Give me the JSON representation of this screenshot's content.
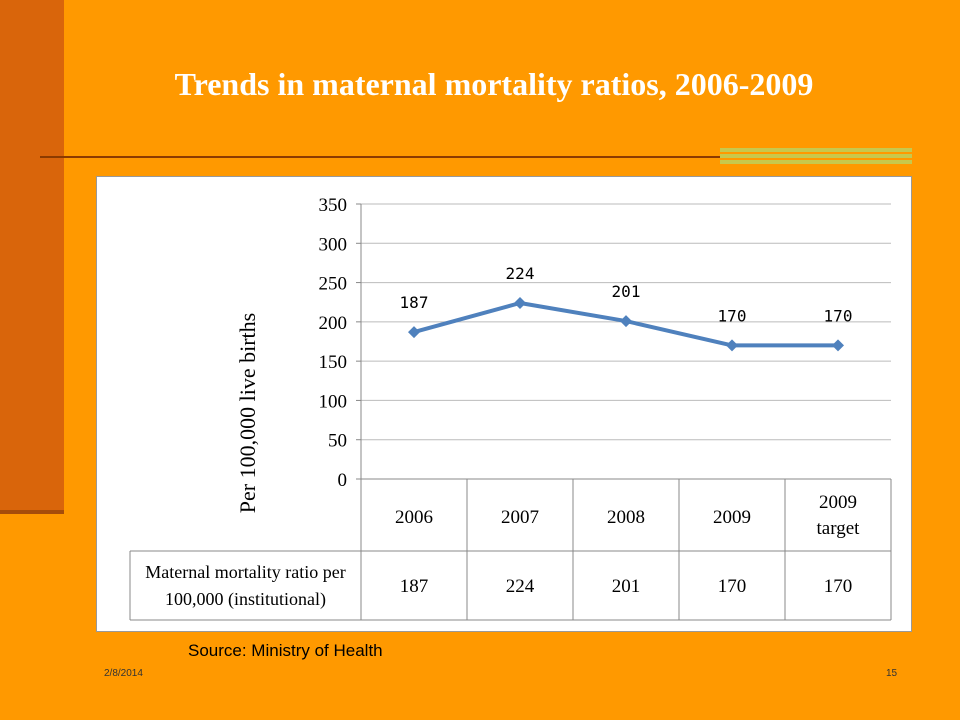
{
  "slide": {
    "title": "Trends in maternal mortality ratios, 2006-2009",
    "source": "Source: Ministry of Health",
    "date": "2/8/2014",
    "page_number": "15"
  },
  "colors": {
    "background": "#FF9900",
    "side_bar": "#D9650B",
    "line": "#4F81BD",
    "accent_stripe": "#C8C84C"
  },
  "chart_data": {
    "type": "line",
    "title": "",
    "ylabel": "Per 100,000 live births",
    "xlabel": "",
    "ylim": [
      0,
      350
    ],
    "yticks": [
      "0",
      "50",
      "100",
      "150",
      "200",
      "250",
      "300",
      "350"
    ],
    "grid": true,
    "categories": [
      "2006",
      "2007",
      "2008",
      "2009",
      "2009 target"
    ],
    "series": [
      {
        "name": "Maternal mortality ratio per 100,000 (institutional)",
        "values": [
          187,
          224,
          201,
          170,
          170
        ]
      }
    ],
    "data_labels": [
      "187",
      "224",
      "201",
      "170",
      "170"
    ],
    "data_table": {
      "row_label": "Maternal mortality ratio per 100,000 (institutional)",
      "row_label_lines": [
        "Maternal mortality ratio per",
        "100,000 (institutional)"
      ],
      "values": [
        "187",
        "224",
        "201",
        "170",
        "170"
      ]
    }
  }
}
